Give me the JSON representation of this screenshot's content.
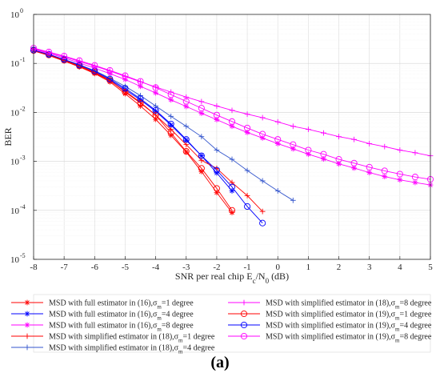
{
  "figure_label": "(a)",
  "chart_data": {
    "type": "line",
    "title": "",
    "xlabel": "SNR per real chip E_c/N_0 (dB)",
    "ylabel": "BER",
    "xlim": [
      -8,
      5
    ],
    "ylim": [
      1e-05,
      1
    ],
    "y_scale": "log",
    "x_ticks": [
      -8,
      -7,
      -6,
      -5,
      -4,
      -3,
      -2,
      -1,
      0,
      1,
      2,
      3,
      4,
      5
    ],
    "x_tick_labels": [
      "-8",
      "-7",
      "-6",
      "-5",
      "-4",
      "-3",
      "-2",
      "-1",
      "0",
      "1",
      "2",
      "3",
      "4",
      "5"
    ],
    "y_ticks": [
      1e-05,
      0.0001,
      0.001,
      0.01,
      0.1,
      1
    ],
    "y_tick_labels": [
      {
        "base": "10",
        "exp": "-5"
      },
      {
        "base": "10",
        "exp": "-4"
      },
      {
        "base": "10",
        "exp": "-3"
      },
      {
        "base": "10",
        "exp": "-2"
      },
      {
        "base": "10",
        "exp": "-1"
      },
      {
        "base": "10",
        "exp": "0"
      }
    ],
    "grid": true,
    "legend_position": "bottom",
    "series": [
      {
        "name": "MSD with full estimator in (16),σm=1 degree",
        "label_parts": [
          "MSD with full estimator in (16),σ",
          "m",
          "=1 degree"
        ],
        "color": "#ff0000",
        "marker": "asterisk",
        "x": [
          -8,
          -7.5,
          -7,
          -6.5,
          -6,
          -5.5,
          -5,
          -4.5,
          -4,
          -3.5,
          -3,
          -2.5,
          -2,
          -1.5
        ],
        "y": [
          0.18,
          0.145,
          0.112,
          0.085,
          0.062,
          0.042,
          0.024,
          0.0135,
          0.0072,
          0.0034,
          0.00155,
          0.00062,
          0.00023,
          9e-05
        ]
      },
      {
        "name": "MSD with full estimator in (16),σm=4 degree",
        "label_parts": [
          "MSD with full estimator in (16),σ",
          "m",
          "=4 degree"
        ],
        "color": "#0000ff",
        "marker": "asterisk",
        "x": [
          -8,
          -7.5,
          -7,
          -6.5,
          -6,
          -5.5,
          -5,
          -4.5,
          -4,
          -3.5,
          -3,
          -2.5,
          -2,
          -1.5
        ],
        "y": [
          0.182,
          0.148,
          0.116,
          0.089,
          0.067,
          0.046,
          0.029,
          0.018,
          0.0105,
          0.0055,
          0.0027,
          0.0013,
          0.00058,
          0.00025
        ]
      },
      {
        "name": "MSD with full estimator in (16),σm=8 degree",
        "label_parts": [
          "MSD with full estimator in (16),σ",
          "m",
          "=8 degree"
        ],
        "color": "#ff00ff",
        "marker": "asterisk",
        "x": [
          -8,
          -7.5,
          -7,
          -6.5,
          -6,
          -5.5,
          -5,
          -4.5,
          -4,
          -3.5,
          -3,
          -2.5,
          -2,
          -1.5,
          -1,
          -0.5,
          0,
          0.5,
          1,
          1.5,
          2,
          2.5,
          3,
          3.5,
          4,
          4.5,
          5
        ],
        "y": [
          0.195,
          0.16,
          0.13,
          0.102,
          0.08,
          0.062,
          0.047,
          0.034,
          0.025,
          0.018,
          0.0132,
          0.0096,
          0.0071,
          0.0052,
          0.0039,
          0.003,
          0.0023,
          0.0018,
          0.0014,
          0.00112,
          0.00089,
          0.00073,
          0.00059,
          0.00049,
          0.00042,
          0.00037,
          0.00033
        ]
      },
      {
        "name": "MSD with simplified estimator in (18),σm=1 degree",
        "label_parts": [
          "MSD with simplified estimator in (18),σ",
          "m",
          "=1 degree"
        ],
        "color": "#ff0000",
        "marker": "plus",
        "x": [
          -8,
          -7.5,
          -7,
          -6.5,
          -6,
          -5.5,
          -5,
          -4.5,
          -4,
          -3.5,
          -3,
          -2.5,
          -2,
          -1.5,
          -1,
          -0.5
        ],
        "y": [
          0.181,
          0.147,
          0.114,
          0.087,
          0.064,
          0.044,
          0.027,
          0.016,
          0.0088,
          0.0045,
          0.0022,
          0.00105,
          0.00072,
          0.00037,
          0.0002,
          9.5e-05
        ]
      },
      {
        "name": "MSD with simplified estimator in (18),σm=4 degree",
        "label_parts": [
          "MSD with simplified estimator in (18),σ",
          "m",
          "=4 degree"
        ],
        "color": "#3355cc",
        "marker": "plus",
        "x": [
          -8,
          -7.5,
          -7,
          -6.5,
          -6,
          -5.5,
          -5,
          -4.5,
          -4,
          -3.5,
          -3,
          -2.5,
          -2,
          -1.5,
          -1,
          -0.5,
          0,
          0.5
        ],
        "y": [
          0.185,
          0.152,
          0.12,
          0.094,
          0.071,
          0.05,
          0.034,
          0.022,
          0.0135,
          0.0083,
          0.0052,
          0.0032,
          0.0017,
          0.0011,
          0.00065,
          0.0004,
          0.00025,
          0.00016
        ]
      },
      {
        "name": "MSD with simplified estimator in (18),σm=8 degree",
        "label_parts": [
          "MSD with simplified estimator in (18),σ",
          "m",
          "=8 degree"
        ],
        "color": "#ff00ff",
        "marker": "plus",
        "x": [
          -8,
          -7.5,
          -7,
          -6.5,
          -6,
          -5.5,
          -5,
          -4.5,
          -4,
          -3.5,
          -3,
          -2.5,
          -2,
          -1.5,
          -1,
          -0.5,
          0,
          0.5,
          1,
          1.5,
          2,
          2.5,
          3,
          3.5,
          4,
          4.5,
          5
        ],
        "y": [
          0.2,
          0.167,
          0.138,
          0.11,
          0.088,
          0.07,
          0.054,
          0.042,
          0.033,
          0.026,
          0.0205,
          0.0166,
          0.0135,
          0.011,
          0.0092,
          0.0078,
          0.0064,
          0.0052,
          0.0045,
          0.0038,
          0.0032,
          0.0028,
          0.0023,
          0.002,
          0.0017,
          0.0015,
          0.0013
        ]
      },
      {
        "name": "MSD with simplified estimator in (19),σm=1 degree",
        "label_parts": [
          "MSD with simplified estimator in (19),σ",
          "m",
          "=1 degree"
        ],
        "color": "#ff0000",
        "marker": "circle",
        "x": [
          -8,
          -7.5,
          -7,
          -6.5,
          -6,
          -5.5,
          -5,
          -4.5,
          -4,
          -3.5,
          -3,
          -2.5,
          -2,
          -1.5
        ],
        "y": [
          0.183,
          0.149,
          0.117,
          0.089,
          0.066,
          0.045,
          0.026,
          0.0155,
          0.0088,
          0.0038,
          0.0016,
          0.00072,
          0.00028,
          0.0001
        ]
      },
      {
        "name": "MSD with simplified estimator in (19),σm=4 degree",
        "label_parts": [
          "MSD with simplified estimator in (19),σ",
          "m",
          "=4 degree"
        ],
        "color": "#0000ff",
        "marker": "circle",
        "x": [
          -8,
          -7.5,
          -7,
          -6.5,
          -6,
          -5.5,
          -5,
          -4.5,
          -4,
          -3.5,
          -3,
          -2.5,
          -2,
          -1.5,
          -1,
          -0.5
        ],
        "y": [
          0.187,
          0.153,
          0.12,
          0.092,
          0.07,
          0.048,
          0.031,
          0.019,
          0.011,
          0.0058,
          0.0028,
          0.0013,
          0.00066,
          0.0003,
          0.00012,
          5.5e-05
        ]
      },
      {
        "name": "MSD with simplified estimator in (19),σm=8 degree",
        "label_parts": [
          "MSD with simplified estimator in (19),σ",
          "m",
          "=8 degree"
        ],
        "color": "#ff00ff",
        "marker": "circle",
        "x": [
          -8,
          -7.5,
          -7,
          -6.5,
          -6,
          -5.5,
          -5,
          -4.5,
          -4,
          -3.5,
          -3,
          -2.5,
          -2,
          -1.5,
          -1,
          -0.5,
          0,
          0.5,
          1,
          1.5,
          2,
          2.5,
          3,
          3.5,
          4,
          4.5,
          5
        ],
        "y": [
          0.205,
          0.171,
          0.141,
          0.114,
          0.091,
          0.072,
          0.056,
          0.043,
          0.032,
          0.023,
          0.0168,
          0.0122,
          0.0088,
          0.0065,
          0.0048,
          0.0036,
          0.0028,
          0.0022,
          0.0017,
          0.0014,
          0.0011,
          0.00092,
          0.00076,
          0.00064,
          0.00055,
          0.00048,
          0.00043
        ]
      }
    ]
  }
}
